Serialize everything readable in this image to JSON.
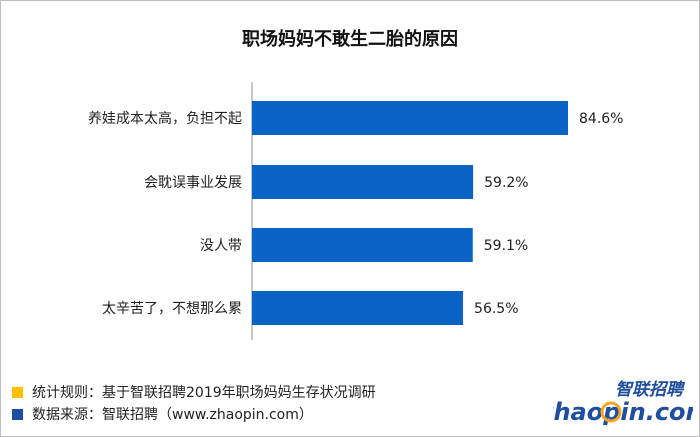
{
  "chart_data": {
    "type": "bar",
    "orientation": "horizontal",
    "title": "职场妈妈不敢生二胎的原因",
    "categories": [
      "养娃成本太高，负担不起",
      "会耽误事业发展",
      "没人带",
      "太辛苦了，不想那么累"
    ],
    "values": [
      84.6,
      59.2,
      59.1,
      56.5
    ],
    "value_labels": [
      "84.6%",
      "59.2%",
      "59.1%",
      "56.5%"
    ],
    "unit": "%",
    "xlim": [
      0,
      100
    ],
    "grid": false,
    "bar_color": "#0a63c4"
  },
  "footer": {
    "note1": "统计规则：基于智联招聘2019年职场妈妈生存状况调研",
    "note2": "数据来源：智联招聘（www.zhaopin.com）",
    "note1_color": "#ffc000",
    "note2_color": "#1f4e9e"
  },
  "logo": {
    "top_text": "智联招聘",
    "bottom_text": "zhaopin.com"
  }
}
